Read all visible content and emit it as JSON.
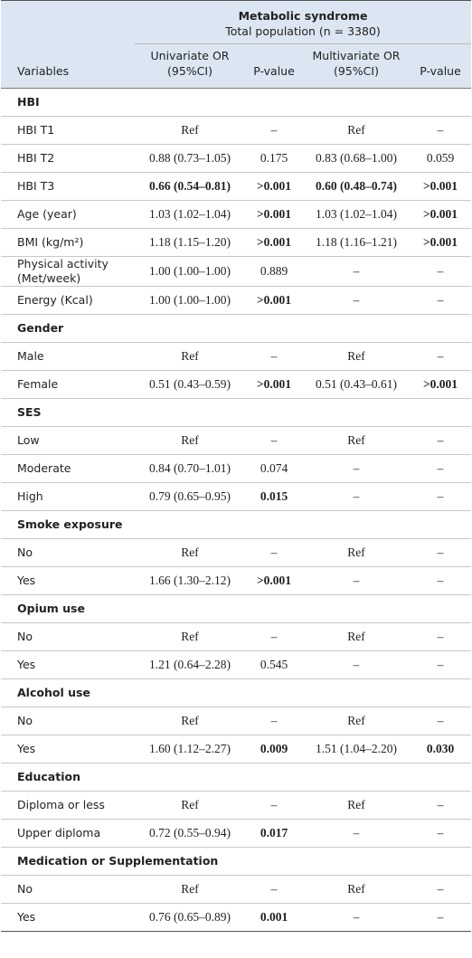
{
  "header": {
    "title": "Metabolic syndrome",
    "subtitle": "Total population (n = 3380)",
    "columns": [
      "Variables",
      "Univariate OR (95%CI)",
      "P-value",
      "Multivariate OR (95%CI)",
      "P-value"
    ]
  },
  "rows": [
    {
      "section": "HBI"
    },
    {
      "cells": [
        "HBI T1",
        "Ref",
        "–",
        "Ref",
        "–"
      ],
      "bold": []
    },
    {
      "cells": [
        "HBI T2",
        "0.88 (0.73–1.05)",
        "0.175",
        "0.83 (0.68–1.00)",
        "0.059"
      ],
      "bold": []
    },
    {
      "cells": [
        "HBI T3",
        "0.66 (0.54–0.81)",
        ">0.001",
        "0.60 (0.48–0.74)",
        ">0.001"
      ],
      "bold": [
        1,
        2,
        3,
        4
      ]
    },
    {
      "cells": [
        "Age (year)",
        "1.03 (1.02–1.04)",
        ">0.001",
        "1.03 (1.02–1.04)",
        ">0.001"
      ],
      "bold": [
        2,
        4
      ]
    },
    {
      "cells": [
        "BMI (kg/m²)",
        "1.18 (1.15–1.20)",
        ">0.001",
        "1.18 (1.16–1.21)",
        ">0.001"
      ],
      "bold": [
        2,
        4
      ]
    },
    {
      "cells": [
        "Physical activity (Met/week)",
        "1.00 (1.00–1.00)",
        "0.889",
        "–",
        "–"
      ],
      "bold": []
    },
    {
      "cells": [
        "Energy (Kcal)",
        "1.00 (1.00–1.00)",
        ">0.001",
        "–",
        "–"
      ],
      "bold": [
        2
      ]
    },
    {
      "section": "Gender"
    },
    {
      "cells": [
        "Male",
        "Ref",
        "–",
        "Ref",
        "–"
      ],
      "bold": []
    },
    {
      "cells": [
        "Female",
        "0.51 (0.43–0.59)",
        ">0.001",
        "0.51 (0.43–0.61)",
        ">0.001"
      ],
      "bold": [
        2,
        4
      ]
    },
    {
      "section": "SES"
    },
    {
      "cells": [
        "Low",
        "Ref",
        "–",
        "Ref",
        "–"
      ],
      "bold": []
    },
    {
      "cells": [
        "Moderate",
        "0.84 (0.70–1.01)",
        "0.074",
        "–",
        "–"
      ],
      "bold": []
    },
    {
      "cells": [
        "High",
        "0.79 (0.65–0.95)",
        "0.015",
        "–",
        "–"
      ],
      "bold": [
        2
      ]
    },
    {
      "section": "Smoke exposure"
    },
    {
      "cells": [
        "No",
        "Ref",
        "–",
        "Ref",
        "–"
      ],
      "bold": []
    },
    {
      "cells": [
        "Yes",
        "1.66 (1.30–2.12)",
        ">0.001",
        "–",
        "–"
      ],
      "bold": [
        2
      ]
    },
    {
      "section": "Opium use"
    },
    {
      "cells": [
        "No",
        "Ref",
        "–",
        "Ref",
        "–"
      ],
      "bold": []
    },
    {
      "cells": [
        "Yes",
        "1.21 (0.64–2.28)",
        "0.545",
        "–",
        "–"
      ],
      "bold": []
    },
    {
      "section": "Alcohol use"
    },
    {
      "cells": [
        "No",
        "Ref",
        "–",
        "Ref",
        "–"
      ],
      "bold": []
    },
    {
      "cells": [
        "Yes",
        "1.60 (1.12–2.27)",
        "0.009",
        "1.51 (1.04–2.20)",
        "0.030"
      ],
      "bold": [
        2,
        4
      ]
    },
    {
      "section": "Education"
    },
    {
      "cells": [
        "Diploma or less",
        "Ref",
        "–",
        "Ref",
        "–"
      ],
      "bold": []
    },
    {
      "cells": [
        "Upper diploma",
        "0.72 (0.55–0.94)",
        "0.017",
        "–",
        "–"
      ],
      "bold": [
        2
      ]
    },
    {
      "section": "Medication or Supplementation"
    },
    {
      "cells": [
        "No",
        "Ref",
        "–",
        "Ref",
        "–"
      ],
      "bold": []
    },
    {
      "cells": [
        "Yes",
        "0.76 (0.65–0.89)",
        "0.001",
        "–",
        "–"
      ],
      "bold": [
        2
      ]
    }
  ]
}
